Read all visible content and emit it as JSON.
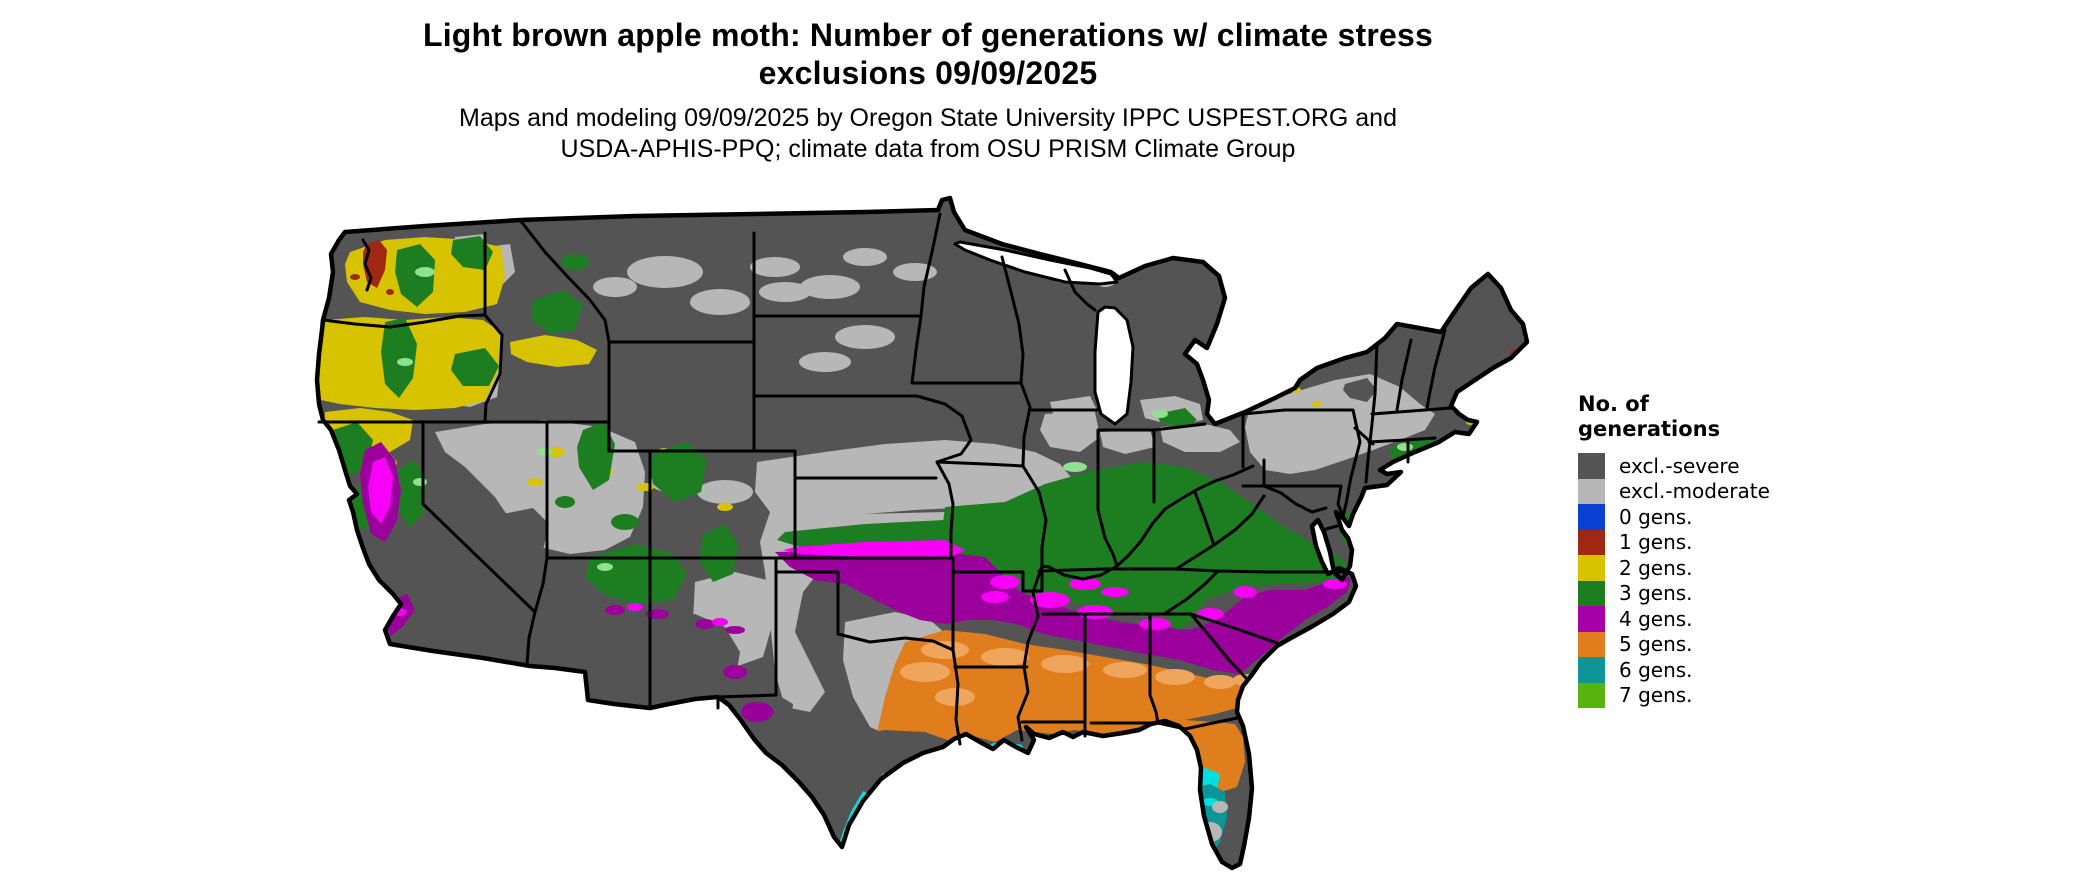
{
  "title": {
    "line1": "Light brown apple moth: Number of generations w/ climate stress",
    "line2": "exclusions 09/09/2025"
  },
  "subtitle": {
    "line1": "Maps and modeling 09/09/2025 by Oregon State University IPPC USPEST.ORG and",
    "line2": "USDA-APHIS-PPQ; climate data from OSU PRISM Climate Group"
  },
  "legend": {
    "title_line1": "No. of",
    "title_line2": "generations",
    "items": [
      {
        "key": "severe",
        "label": "excl.-severe",
        "color": "#545454"
      },
      {
        "key": "moderate",
        "label": "excl.-moderate",
        "color": "#b7b7b7"
      },
      {
        "key": "gen0",
        "label": "0 gens.",
        "color": "#0b41d2"
      },
      {
        "key": "gen1",
        "label": "1 gens.",
        "color": "#a02713"
      },
      {
        "key": "gen2",
        "label": "2 gens.",
        "color": "#d8c300"
      },
      {
        "key": "gen3",
        "label": "3 gens.",
        "color": "#1d7d21"
      },
      {
        "key": "gen4",
        "label": "4 gens.",
        "color": "#a800a8"
      },
      {
        "key": "gen5",
        "label": "5 gens.",
        "color": "#e07d1d"
      },
      {
        "key": "gen6",
        "label": "6 gens.",
        "color": "#0e9598"
      },
      {
        "key": "gen7",
        "label": "7 gens.",
        "color": "#59b30c"
      }
    ]
  },
  "map": {
    "region": "Contiguous United States",
    "shade_variants": {
      "gen4_deep": "#9c009c",
      "gen4_bright": "#f800f8",
      "gen5_light": "#f0a55c",
      "gen6_bright": "#00e0e0",
      "gen3_light": "#8fe08f",
      "border": "#000000",
      "water": "#ffffff"
    }
  }
}
